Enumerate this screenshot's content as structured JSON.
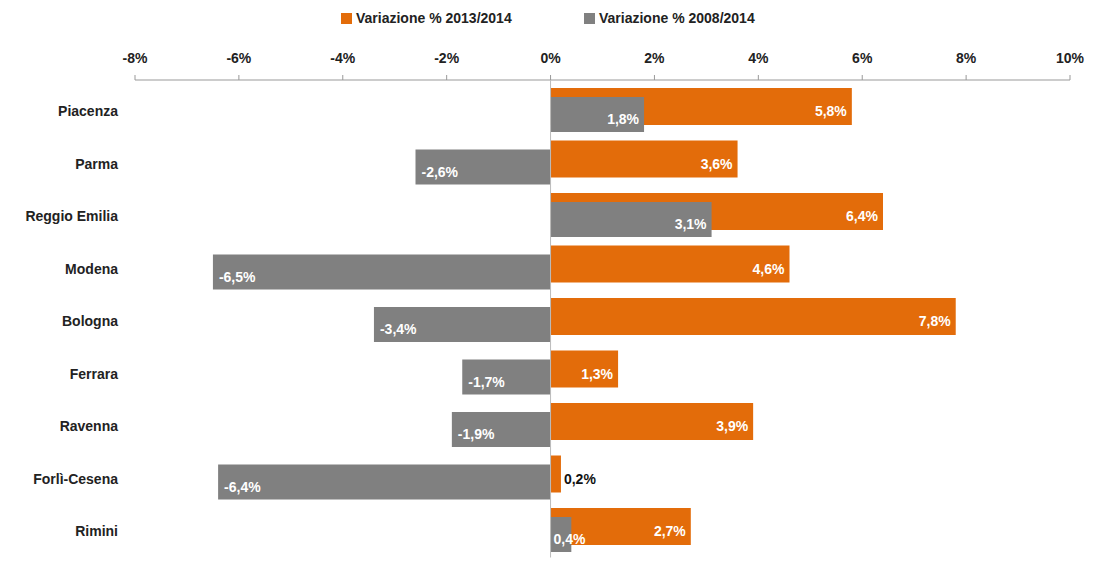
{
  "chart_data": {
    "type": "bar",
    "orientation": "horizontal",
    "categories": [
      "Piacenza",
      "Parma",
      "Reggio Emilia",
      "Modena",
      "Bologna",
      "Ferrara",
      "Ravenna",
      "Forlì-Cesena",
      "Rimini"
    ],
    "series": [
      {
        "name": "Variazione % 2013/2014",
        "color": "#e36c0a",
        "values": [
          5.8,
          3.6,
          6.4,
          4.6,
          7.8,
          1.3,
          3.9,
          0.2,
          2.7
        ],
        "value_labels": [
          "5,8%",
          "3,6%",
          "6,4%",
          "4,6%",
          "7,8%",
          "1,3%",
          "3,9%",
          "0,2%",
          "2,7%"
        ]
      },
      {
        "name": "Variazione % 2008/2014",
        "color": "#808080",
        "values": [
          1.8,
          -2.6,
          3.1,
          -6.5,
          -3.4,
          -1.7,
          -1.9,
          -6.4,
          0.4
        ],
        "value_labels": [
          "1,8%",
          "-2,6%",
          "3,1%",
          "-6,5%",
          "-3,4%",
          "-1,7%",
          "-1,9%",
          "-6,4%",
          "0,4%"
        ]
      }
    ],
    "xlim": [
      -8,
      10
    ],
    "xticks": [
      {
        "value": -8,
        "label": "-8%"
      },
      {
        "value": -6,
        "label": "-6%"
      },
      {
        "value": -4,
        "label": "-4%"
      },
      {
        "value": -2,
        "label": "-2%"
      },
      {
        "value": 0,
        "label": "0%"
      },
      {
        "value": 2,
        "label": "2%"
      },
      {
        "value": 4,
        "label": "4%"
      },
      {
        "value": 6,
        "label": "6%"
      },
      {
        "value": 8,
        "label": "8%"
      },
      {
        "value": 10,
        "label": "10%"
      }
    ],
    "grid": false,
    "legend": "top",
    "data_labels": true
  }
}
